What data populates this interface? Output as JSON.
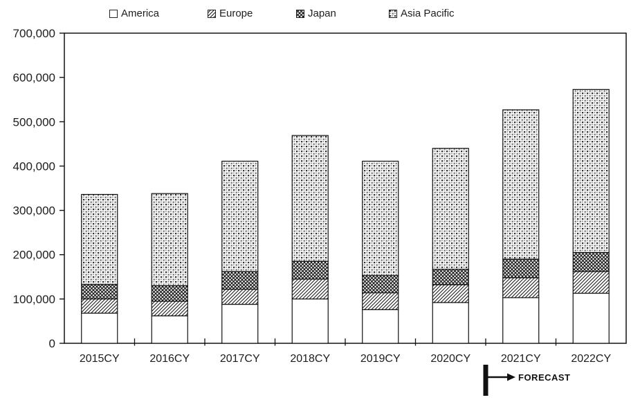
{
  "chart_data": {
    "type": "bar",
    "stacked": true,
    "title": "",
    "xlabel": "",
    "ylabel": "",
    "categories": [
      "2015CY",
      "2016CY",
      "2017CY",
      "2018CY",
      "2019CY",
      "2020CY",
      "2021CY",
      "2022CY"
    ],
    "series": [
      {
        "name": "America",
        "pattern": "plain-white",
        "values": [
          68000,
          62000,
          88000,
          100000,
          76000,
          92000,
          103000,
          113000
        ]
      },
      {
        "name": "Europe",
        "pattern": "diagonal-hatch",
        "values": [
          32000,
          33000,
          34000,
          45000,
          38000,
          40000,
          45000,
          49000
        ]
      },
      {
        "name": "Japan",
        "pattern": "diamond-crosshatch",
        "values": [
          33000,
          35000,
          40000,
          40000,
          39000,
          35000,
          42000,
          43000
        ]
      },
      {
        "name": "Asia Pacific",
        "pattern": "dense-dots",
        "values": [
          203000,
          208000,
          249000,
          284000,
          258000,
          273000,
          337000,
          368000
        ]
      }
    ],
    "stack_totals": [
      336000,
      338000,
      411000,
      469000,
      411000,
      440000,
      527000,
      573000
    ],
    "ylim": [
      0,
      700000
    ],
    "ytick_interval": 100000,
    "ytick_labels": [
      "0",
      "100,000",
      "200,000",
      "300,000",
      "400,000",
      "500,000",
      "600,000",
      "700,000"
    ],
    "grid": false,
    "legend_position": "top",
    "annotation": {
      "label": "FORECAST",
      "starts_at_category": "2021CY"
    }
  },
  "colors": {
    "axis": "#111111",
    "text": "#1d1d1d",
    "background": "#ffffff",
    "pattern_dark": "#2e2e2e",
    "pattern_mid": "#6e6e6e"
  }
}
